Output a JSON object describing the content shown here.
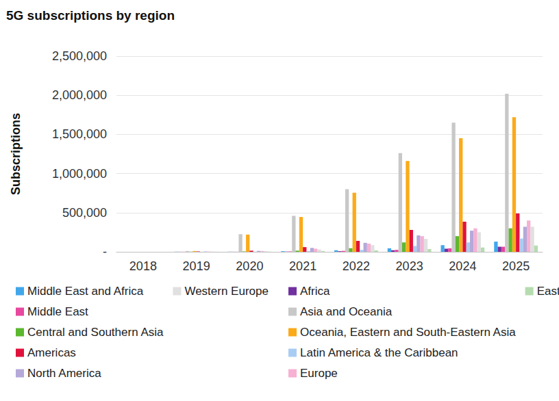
{
  "chart_data": {
    "type": "bar",
    "title": "5G subscriptions by region",
    "y_label": "Subscriptions",
    "categories": [
      "2018",
      "2019",
      "2020",
      "2021",
      "2022",
      "2023",
      "2024",
      "2025"
    ],
    "series": [
      {
        "name": "Middle East and Africa",
        "color": "#41a7ea",
        "values": [
          0,
          2000,
          2000,
          8000,
          20000,
          45000,
          85000,
          130000
        ]
      },
      {
        "name": "Africa",
        "color": "#7030a0",
        "values": [
          0,
          1000,
          1000,
          3000,
          8000,
          20000,
          40000,
          65000
        ]
      },
      {
        "name": "Middle East",
        "color": "#e8489f",
        "values": [
          0,
          1000,
          1000,
          5000,
          12000,
          25000,
          45000,
          65000
        ]
      },
      {
        "name": "Asia and Oceania",
        "color": "#c8c8c8",
        "values": [
          0,
          10000,
          225000,
          460000,
          800000,
          1260000,
          1650000,
          2020000
        ]
      },
      {
        "name": "Central and Southern Asia",
        "color": "#5cb82e",
        "values": [
          0,
          2000,
          5000,
          15000,
          45000,
          120000,
          200000,
          300000
        ]
      },
      {
        "name": "Oceania, Eastern and South-Eastern Asia",
        "color": "#fbaa19",
        "values": [
          0,
          10000,
          220000,
          445000,
          755000,
          1160000,
          1450000,
          1720000
        ]
      },
      {
        "name": "Americas",
        "color": "#e0123c",
        "values": [
          0,
          5000,
          15000,
          60000,
          140000,
          280000,
          385000,
          490000
        ]
      },
      {
        "name": "Latin America & the Caribbean",
        "color": "#a9cdf2",
        "values": [
          0,
          1000,
          2000,
          10000,
          25000,
          75000,
          120000,
          170000
        ]
      },
      {
        "name": "North America",
        "color": "#b4a9d9",
        "values": [
          0,
          4000,
          12000,
          50000,
          115000,
          210000,
          270000,
          320000
        ]
      },
      {
        "name": "Europe",
        "color": "#f6b1d3",
        "values": [
          0,
          3000,
          10000,
          40000,
          105000,
          200000,
          300000,
          400000
        ]
      },
      {
        "name": "Western Europe",
        "color": "#e0e0e0",
        "values": [
          0,
          3000,
          8000,
          30000,
          85000,
          165000,
          250000,
          320000
        ]
      },
      {
        "name": "Eastern Europe",
        "color": "#b5dcaf",
        "values": [
          0,
          1000,
          2000,
          8000,
          18000,
          35000,
          55000,
          80000
        ]
      }
    ],
    "ylim": [
      0,
      2500000
    ],
    "yticks": [
      {
        "value": 0,
        "label": "-"
      },
      {
        "value": 500000,
        "label": "500,000"
      },
      {
        "value": 1000000,
        "label": "1,000,000"
      },
      {
        "value": 1500000,
        "label": "1,500,000"
      },
      {
        "value": 2000000,
        "label": "2,000,000"
      },
      {
        "value": 2500000,
        "label": "2,500,000"
      }
    ],
    "grid": true,
    "legend": "bottom"
  }
}
